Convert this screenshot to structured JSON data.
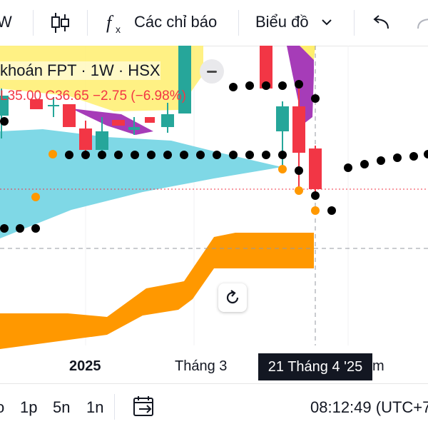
{
  "toolbar": {
    "interval_partial": "W",
    "indicators_label": "Các chỉ báo",
    "chart_type_label": "Biểu đồ",
    "icons": [
      "candlestick-icon",
      "function-icon",
      "chevron-down-icon",
      "undo-icon",
      "redo-icon"
    ]
  },
  "legend": {
    "title": "khoán FPT · 1W · HSX",
    "ohlc": "L35.00  C36.65  −2.75 (−6.98%)"
  },
  "chart": {
    "x_labels": [
      "2025",
      "Tháng 3",
      "m"
    ],
    "crosshair_time": "21 Tháng 4 '25",
    "colors": {
      "up": "#26a69a",
      "down": "#f23645",
      "cloud_cyan": "#7fd8e6",
      "cloud_orange": "#ff9800",
      "cloud_yellow": "#ffee6e",
      "cloud_purple": "#9c27b0",
      "dots": "#000000",
      "dots_orange": "#ff9800"
    }
  },
  "bottombar": {
    "ranges": [
      "o",
      "1p",
      "5n",
      "1n"
    ],
    "time": "08:12:49 (UTC+7"
  }
}
